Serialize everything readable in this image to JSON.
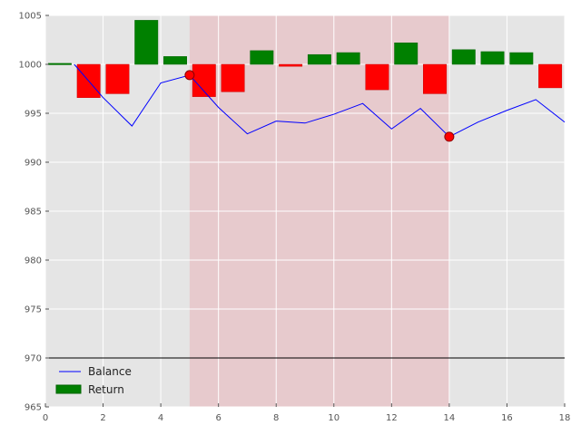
{
  "chart_data": {
    "type": "bar",
    "title": "",
    "xlabel": "",
    "ylabel": "",
    "xlim": [
      0,
      18
    ],
    "ylim": [
      965,
      1005
    ],
    "xticks": [
      "0",
      "2",
      "4",
      "6",
      "8",
      "10",
      "12",
      "14",
      "16",
      "18"
    ],
    "yticks": [
      "965",
      "970",
      "975",
      "980",
      "985",
      "990",
      "995",
      "1000",
      "1005"
    ],
    "grid": true,
    "legend_position": "bottom-left",
    "highlight_region": {
      "x_start": 5,
      "x_end": 14,
      "color": "#e8b8bc"
    },
    "reference_line": {
      "y": 970,
      "color": "#000000"
    },
    "series": [
      {
        "name": "Balance",
        "type": "line",
        "color": "#0000ff",
        "x": [
          1,
          2,
          3,
          4,
          5,
          6,
          7,
          8,
          9,
          10,
          11,
          12,
          13,
          14,
          15,
          16,
          17,
          18
        ],
        "values": [
          1000.0,
          996.6,
          993.7,
          998.1,
          998.9,
          995.6,
          992.9,
          994.2,
          994.0,
          994.9,
          996.0,
          993.4,
          995.5,
          992.6,
          994.1,
          995.3,
          996.4,
          994.1
        ]
      },
      {
        "name": "Return",
        "type": "bar",
        "color": "#008000",
        "negative_color": "#ff0000",
        "baseline": 1000,
        "x": [
          0,
          1,
          2,
          3,
          4,
          5,
          6,
          7,
          8,
          9,
          10,
          11,
          12,
          13,
          14,
          15,
          16,
          17
        ],
        "values": [
          0.1,
          -3.4,
          -3.0,
          4.5,
          0.8,
          -3.3,
          -2.8,
          1.4,
          -0.2,
          1.0,
          1.2,
          -2.6,
          2.2,
          -3.0,
          1.5,
          1.3,
          1.2,
          -2.4
        ]
      }
    ],
    "markers": [
      {
        "x": 5,
        "y": 998.9,
        "color": "#ff0000"
      },
      {
        "x": 14,
        "y": 992.6,
        "color": "#ff0000"
      }
    ]
  }
}
